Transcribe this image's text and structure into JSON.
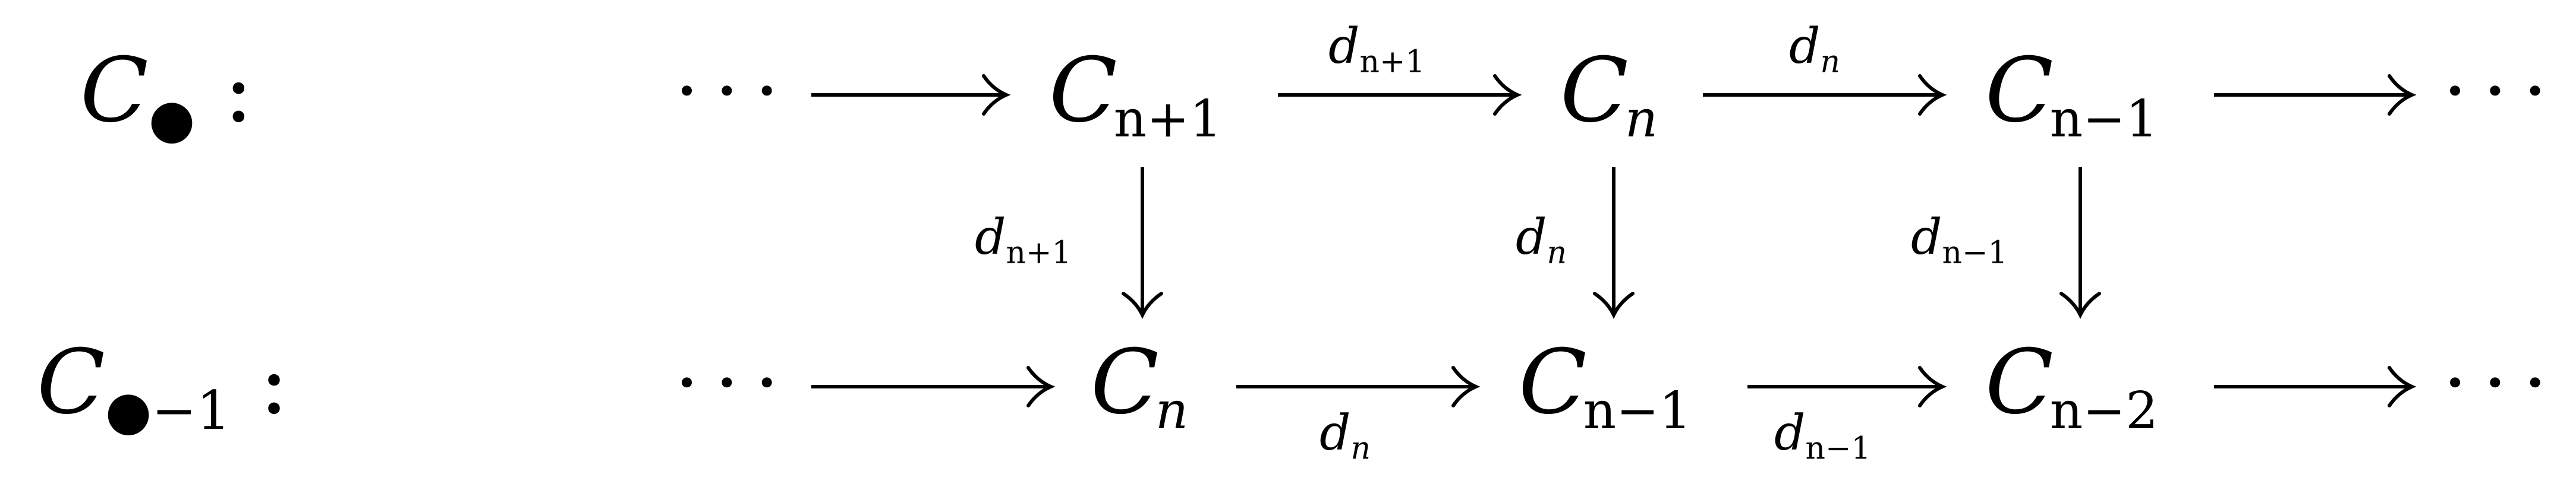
{
  "rows": {
    "top": {
      "label": {
        "main": "C",
        "sub": "●",
        "colon": ":"
      },
      "objects": [
        {
          "main": "C",
          "sub": "n+1"
        },
        {
          "main": "C",
          "sub": "n"
        },
        {
          "main": "C",
          "sub": "n−1"
        }
      ]
    },
    "bottom": {
      "label": {
        "main": "C",
        "sub": "●−1",
        "colon": ":"
      },
      "objects": [
        {
          "main": "C",
          "sub": "n"
        },
        {
          "main": "C",
          "sub": "n−1"
        },
        {
          "main": "C",
          "sub": "n−2"
        }
      ]
    }
  },
  "ellipsis": "···",
  "morphisms": {
    "top_1": {
      "main": "d",
      "sub": "n+1"
    },
    "top_2": {
      "main": "d",
      "sub": "n"
    },
    "bottom_1": {
      "main": "d",
      "sub": "n"
    },
    "bottom_2": {
      "main": "d",
      "sub": "n−1"
    },
    "vert_1": {
      "main": "d",
      "sub": "n+1"
    },
    "vert_2": {
      "main": "d",
      "sub": "n"
    },
    "vert_3": {
      "main": "d",
      "sub": "n−1"
    }
  }
}
